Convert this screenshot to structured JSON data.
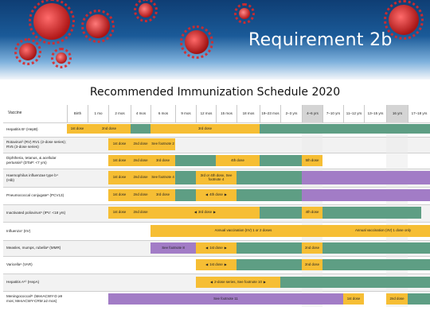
{
  "banner": {
    "title": "Requirement 2b"
  },
  "subtitle": "Recommended Immunization Schedule 2020",
  "colors": {
    "catch_up": "#f6be34",
    "recommended_range": "#5e9e84",
    "high_risk": "#a27cc6",
    "age_column": "#d4d4d4"
  },
  "columns": {
    "vaccine": "Vaccine",
    "ages": [
      "Birth",
      "1 mo",
      "2 mos",
      "4 mos",
      "6 mos",
      "9 mos",
      "12 mos",
      "15 mos",
      "18 mos",
      "19–23 mos",
      "2–3 yrs",
      "4–6 yrs",
      "7–10 yrs",
      "11–12 yrs",
      "13–15 yrs",
      "16 yrs",
      "17–18 yrs"
    ]
  },
  "rows": [
    {
      "name": "Hepatitis B¹ (HepB)",
      "labels": [
        "1st dose",
        "2nd dose",
        "3rd dose"
      ]
    },
    {
      "name": "Rotavirus² (RV) RV1 (2-dose series); RV5 (3-dose series)",
      "labels": [
        "1st dose",
        "2nd dose",
        "See footnote 2"
      ]
    },
    {
      "name": "Diphtheria, tetanus, & acellular pertussis³ (DTaP: <7 yrs)",
      "labels": [
        "1st dose",
        "2nd dose",
        "3rd dose",
        "4th dose",
        "5th dose"
      ]
    },
    {
      "name": "Haemophilus influenzae type b⁴ (Hib)",
      "labels": [
        "1st dose",
        "2nd dose",
        "See footnote 4",
        "3rd or 4th dose, See footnote 4"
      ]
    },
    {
      "name": "Pneumococcal conjugate⁵ (PCV13)",
      "labels": [
        "1st dose",
        "2nd dose",
        "3rd dose",
        "4th dose"
      ]
    },
    {
      "name": "Inactivated poliovirus⁶ (IPV: <18 yrs)",
      "labels": [
        "1st dose",
        "2nd dose",
        "3rd dose",
        "4th dose"
      ]
    },
    {
      "name": "Influenza⁷ (IIV)",
      "labels": [
        "Annual vaccination (IIV) 1 or 2 doses",
        "Annual vaccination (IIV) 1 dose only"
      ]
    },
    {
      "name": "Measles, mumps, rubella⁸ (MMR)",
      "labels": [
        "See footnote 8",
        "1st dose",
        "2nd dose"
      ]
    },
    {
      "name": "Varicella⁹ (VAR)",
      "labels": [
        "1st dose",
        "2nd dose"
      ]
    },
    {
      "name": "Hepatitis A¹⁰ (HepA)",
      "labels": [
        "2-dose series, See footnote 10"
      ]
    },
    {
      "name": "Meningococcal¹¹ (MenACWY-D ≥9 mos; MenACWY-CRM ≥2 mos)",
      "labels": [
        "See footnote 11",
        "1st dose",
        "2nd dose"
      ]
    }
  ]
}
